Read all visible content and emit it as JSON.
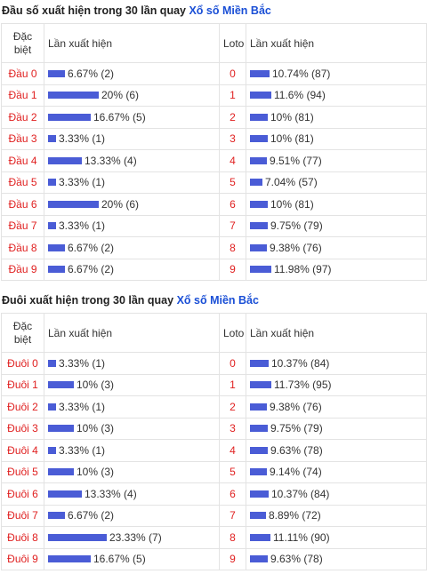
{
  "dau": {
    "title_prefix": "Đầu số xuất hiện trong 30 lần quay",
    "title_link": "Xổ số Miền Bắc",
    "header": {
      "col1": "Đặc biệt",
      "col2": "Lần xuất hiện",
      "col3": "Loto",
      "col4": "Lần xuất hiện"
    },
    "rows": [
      {
        "label": "Đầu 0",
        "pct": "6.67% (2)",
        "value": 6.67,
        "loto": "0",
        "loto_pct": "10.74% (87)",
        "loto_value": 10.74
      },
      {
        "label": "Đầu 1",
        "pct": "20% (6)",
        "value": 20,
        "loto": "1",
        "loto_pct": "11.6% (94)",
        "loto_value": 11.6
      },
      {
        "label": "Đầu 2",
        "pct": "16.67% (5)",
        "value": 16.67,
        "loto": "2",
        "loto_pct": "10% (81)",
        "loto_value": 10
      },
      {
        "label": "Đầu 3",
        "pct": "3.33% (1)",
        "value": 3.33,
        "loto": "3",
        "loto_pct": "10% (81)",
        "loto_value": 10
      },
      {
        "label": "Đầu 4",
        "pct": "13.33% (4)",
        "value": 13.33,
        "loto": "4",
        "loto_pct": "9.51% (77)",
        "loto_value": 9.51
      },
      {
        "label": "Đầu 5",
        "pct": "3.33% (1)",
        "value": 3.33,
        "loto": "5",
        "loto_pct": "7.04% (57)",
        "loto_value": 7.04
      },
      {
        "label": "Đầu 6",
        "pct": "20% (6)",
        "value": 20,
        "loto": "6",
        "loto_pct": "10% (81)",
        "loto_value": 10
      },
      {
        "label": "Đầu 7",
        "pct": "3.33% (1)",
        "value": 3.33,
        "loto": "7",
        "loto_pct": "9.75% (79)",
        "loto_value": 9.75
      },
      {
        "label": "Đầu 8",
        "pct": "6.67% (2)",
        "value": 6.67,
        "loto": "8",
        "loto_pct": "9.38% (76)",
        "loto_value": 9.38
      },
      {
        "label": "Đầu 9",
        "pct": "6.67% (2)",
        "value": 6.67,
        "loto": "9",
        "loto_pct": "11.98% (97)",
        "loto_value": 11.98
      }
    ]
  },
  "duoi": {
    "title_prefix": "Đuôi xuất hiện trong 30 lần quay",
    "title_link": "Xổ số Miền Bắc",
    "header": {
      "col1": "Đặc biệt",
      "col2": "Lần xuất hiện",
      "col3": "Loto",
      "col4": "Lần xuất hiện"
    },
    "rows": [
      {
        "label": "Đuôi 0",
        "pct": "3.33% (1)",
        "value": 3.33,
        "loto": "0",
        "loto_pct": "10.37% (84)",
        "loto_value": 10.37
      },
      {
        "label": "Đuôi 1",
        "pct": "10% (3)",
        "value": 10,
        "loto": "1",
        "loto_pct": "11.73% (95)",
        "loto_value": 11.73
      },
      {
        "label": "Đuôi 2",
        "pct": "3.33% (1)",
        "value": 3.33,
        "loto": "2",
        "loto_pct": "9.38% (76)",
        "loto_value": 9.38
      },
      {
        "label": "Đuôi 3",
        "pct": "10% (3)",
        "value": 10,
        "loto": "3",
        "loto_pct": "9.75% (79)",
        "loto_value": 9.75
      },
      {
        "label": "Đuôi 4",
        "pct": "3.33% (1)",
        "value": 3.33,
        "loto": "4",
        "loto_pct": "9.63% (78)",
        "loto_value": 9.63
      },
      {
        "label": "Đuôi 5",
        "pct": "10% (3)",
        "value": 10,
        "loto": "5",
        "loto_pct": "9.14% (74)",
        "loto_value": 9.14
      },
      {
        "label": "Đuôi 6",
        "pct": "13.33% (4)",
        "value": 13.33,
        "loto": "6",
        "loto_pct": "10.37% (84)",
        "loto_value": 10.37
      },
      {
        "label": "Đuôi 7",
        "pct": "6.67% (2)",
        "value": 6.67,
        "loto": "7",
        "loto_pct": "8.89% (72)",
        "loto_value": 8.89
      },
      {
        "label": "Đuôi 8",
        "pct": "23.33% (7)",
        "value": 23.33,
        "loto": "8",
        "loto_pct": "11.11% (90)",
        "loto_value": 11.11
      },
      {
        "label": "Đuôi 9",
        "pct": "16.67% (5)",
        "value": 16.67,
        "loto": "9",
        "loto_pct": "9.63% (78)",
        "loto_value": 9.63
      }
    ]
  },
  "colors": {
    "bar": "#4a5cd6",
    "label_red": "#e02020",
    "link_blue": "#1a4fd6"
  }
}
